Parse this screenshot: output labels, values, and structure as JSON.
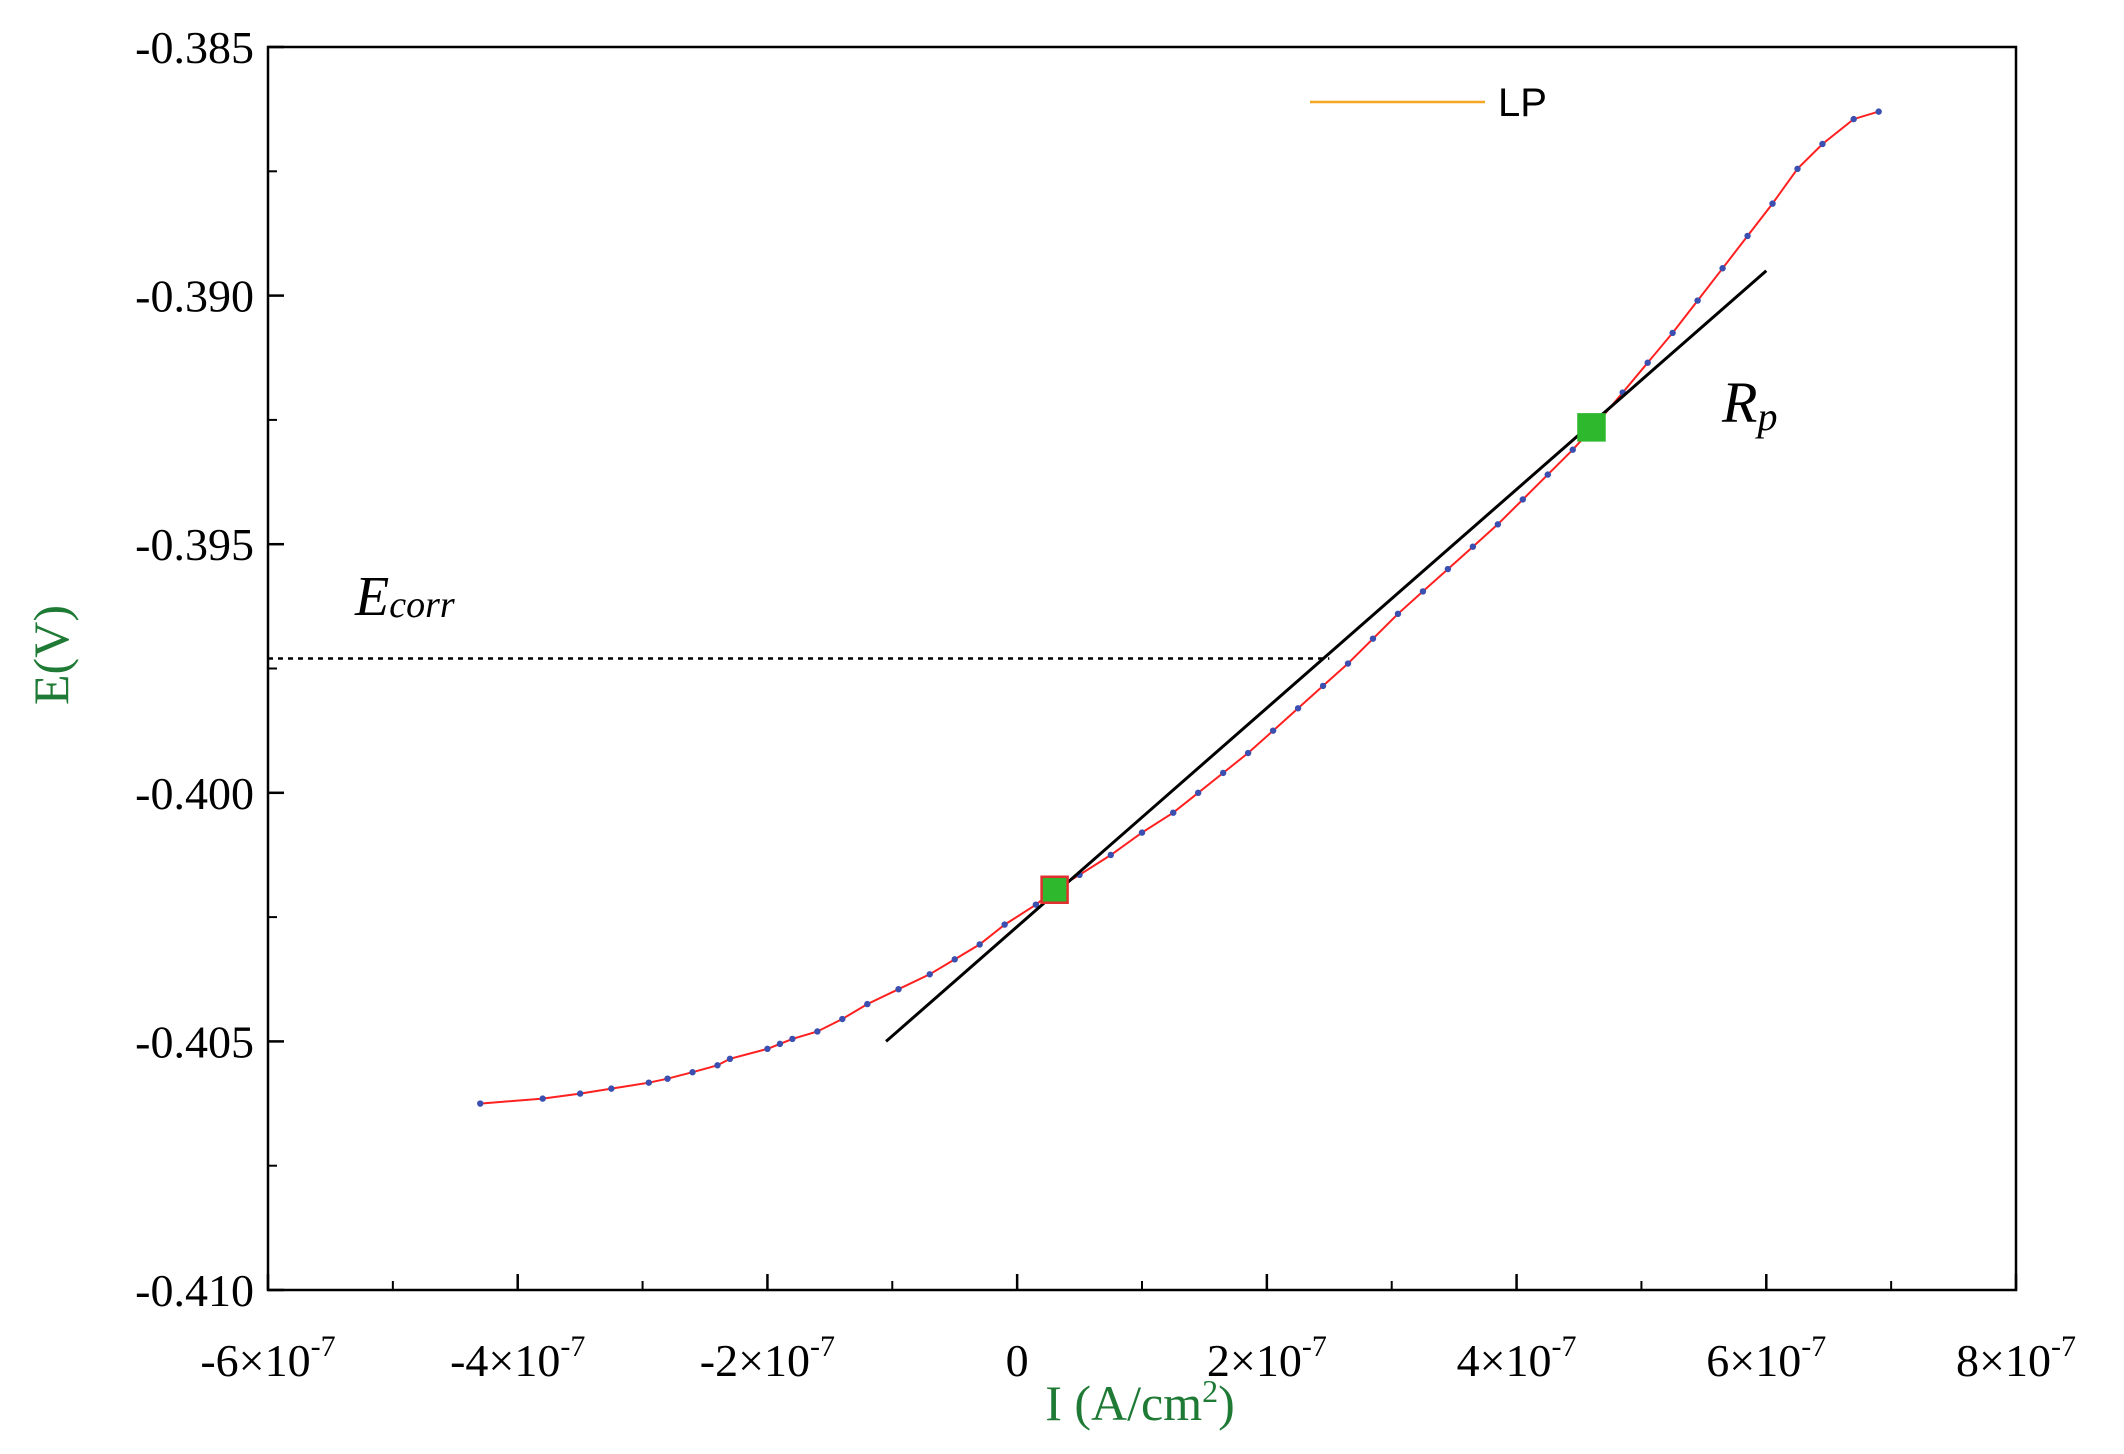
{
  "chart_data": {
    "type": "line",
    "xlabel": "I (A/cm",
    "xlabel_sup": "2",
    "xlabel_close": ")",
    "ylabel": "E(V)",
    "xlim": [
      -6e-07,
      8e-07
    ],
    "ylim": [
      -0.41,
      -0.385
    ],
    "x_ticks": [
      {
        "value": -6e-07,
        "mant": "-6",
        "base": "×10",
        "exp": "-7"
      },
      {
        "value": -4e-07,
        "mant": "-4",
        "base": "×10",
        "exp": "-7"
      },
      {
        "value": -2e-07,
        "mant": "-2",
        "base": "×10",
        "exp": "-7"
      },
      {
        "value": 0,
        "mant": "0",
        "base": "",
        "exp": ""
      },
      {
        "value": 2e-07,
        "mant": "2",
        "base": "×10",
        "exp": "-7"
      },
      {
        "value": 4e-07,
        "mant": "4",
        "base": "×10",
        "exp": "-7"
      },
      {
        "value": 6e-07,
        "mant": "6",
        "base": "×10",
        "exp": "-7"
      },
      {
        "value": 8e-07,
        "mant": "8",
        "base": "×10",
        "exp": "-7"
      }
    ],
    "y_ticks": [
      {
        "value": -0.385,
        "label": "-0.385"
      },
      {
        "value": -0.39,
        "label": "-0.390"
      },
      {
        "value": -0.395,
        "label": "-0.395"
      },
      {
        "value": -0.4,
        "label": "-0.400"
      },
      {
        "value": -0.405,
        "label": "-0.405"
      },
      {
        "value": -0.41,
        "label": "-0.410"
      }
    ],
    "legend": {
      "label": "LP",
      "color": "#f5a623",
      "placement": "top-right"
    },
    "series": [
      {
        "name": "LP",
        "line_color": "#ff2020",
        "marker_color": "#3a4fb0",
        "points": [
          [
            -4.3e-07,
            -0.40625
          ],
          [
            -3.8e-07,
            -0.40615
          ],
          [
            -3.5e-07,
            -0.40605
          ],
          [
            -3.25e-07,
            -0.40595
          ],
          [
            -2.95e-07,
            -0.40583
          ],
          [
            -2.8e-07,
            -0.40575
          ],
          [
            -2.6e-07,
            -0.40562
          ],
          [
            -2.4e-07,
            -0.40548
          ],
          [
            -2.3e-07,
            -0.40535
          ],
          [
            -2e-07,
            -0.40515
          ],
          [
            -1.9e-07,
            -0.40505
          ],
          [
            -1.8e-07,
            -0.40495
          ],
          [
            -1.6e-07,
            -0.4048
          ],
          [
            -1.4e-07,
            -0.40455
          ],
          [
            -1.2e-07,
            -0.40425
          ],
          [
            -9.5e-08,
            -0.40395
          ],
          [
            -7e-08,
            -0.40365
          ],
          [
            -5e-08,
            -0.40335
          ],
          [
            -3e-08,
            -0.40305
          ],
          [
            -1e-08,
            -0.40265
          ],
          [
            1.5e-08,
            -0.40225
          ],
          [
            3e-08,
            -0.40195
          ],
          [
            5e-08,
            -0.40165
          ],
          [
            7.5e-08,
            -0.40125
          ],
          [
            1e-07,
            -0.4008
          ],
          [
            1.25e-07,
            -0.4004
          ],
          [
            1.45e-07,
            -0.4
          ],
          [
            1.65e-07,
            -0.3996
          ],
          [
            1.85e-07,
            -0.3992
          ],
          [
            2.05e-07,
            -0.39875
          ],
          [
            2.25e-07,
            -0.3983
          ],
          [
            2.45e-07,
            -0.39785
          ],
          [
            2.65e-07,
            -0.3974
          ],
          [
            2.85e-07,
            -0.3969
          ],
          [
            3.05e-07,
            -0.3964
          ],
          [
            3.25e-07,
            -0.39595
          ],
          [
            3.45e-07,
            -0.3955
          ],
          [
            3.65e-07,
            -0.39505
          ],
          [
            3.85e-07,
            -0.3946
          ],
          [
            4.05e-07,
            -0.3941
          ],
          [
            4.25e-07,
            -0.3936
          ],
          [
            4.45e-07,
            -0.3931
          ],
          [
            4.65e-07,
            -0.39255
          ],
          [
            4.85e-07,
            -0.39195
          ],
          [
            5.05e-07,
            -0.39135
          ],
          [
            5.25e-07,
            -0.39075
          ],
          [
            5.45e-07,
            -0.3901
          ],
          [
            5.65e-07,
            -0.38945
          ],
          [
            5.85e-07,
            -0.3888
          ],
          [
            6.05e-07,
            -0.38815
          ],
          [
            6.25e-07,
            -0.38745
          ],
          [
            6.45e-07,
            -0.38695
          ],
          [
            6.7e-07,
            -0.38645
          ],
          [
            6.9e-07,
            -0.3863
          ]
        ]
      }
    ],
    "fit_line": {
      "x1": -1.05e-07,
      "y1": -0.405,
      "x2": 6e-07,
      "y2": -0.3895,
      "color": "#000000"
    },
    "fit_markers": [
      [
        3e-08,
        -0.40195
      ],
      [
        4.6e-07,
        -0.39265
      ]
    ],
    "ecorr_line": {
      "y": -0.3973,
      "x_end": 2.5e-07
    },
    "annotations": {
      "ecorr": {
        "main": "E",
        "sub": "corr"
      },
      "rp": {
        "main": "R",
        "sub": "p"
      }
    }
  }
}
